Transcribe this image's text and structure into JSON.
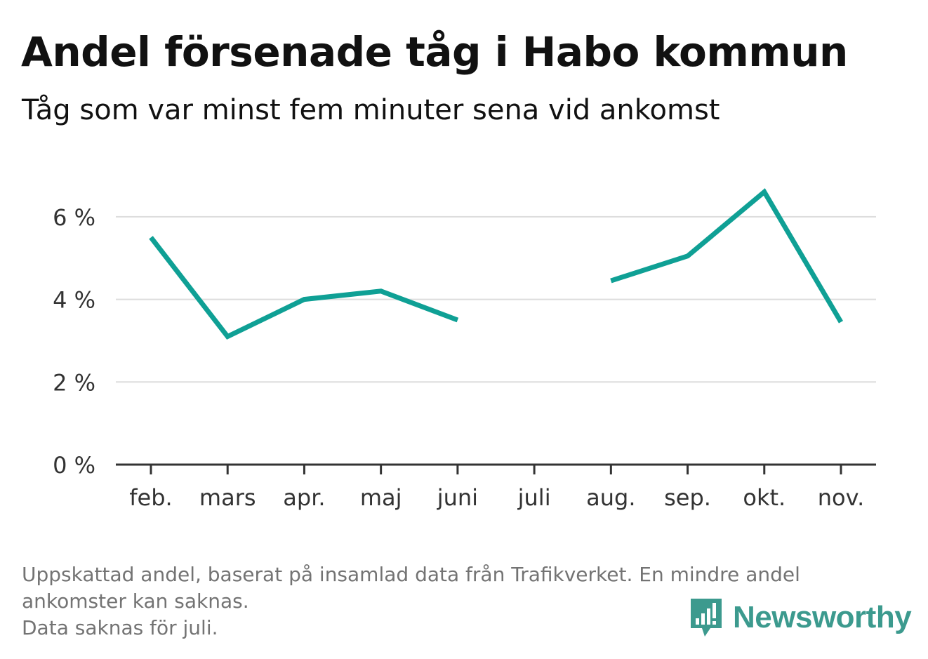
{
  "header": {
    "title": "Andel försenade tåg i Habo kommun",
    "subtitle": "Tåg som var minst fem minuter sena vid ankomst"
  },
  "chart_data": {
    "type": "line",
    "title": "Andel försenade tåg i Habo kommun",
    "subtitle": "Tåg som var minst fem minuter sena vid ankomst",
    "xlabel": "",
    "ylabel": "",
    "categories": [
      "feb.",
      "mars",
      "apr.",
      "maj",
      "juni",
      "juli",
      "aug.",
      "sep.",
      "okt.",
      "nov."
    ],
    "series": [
      {
        "values": [
          5.5,
          3.1,
          4.0,
          4.2,
          3.5,
          null,
          4.45,
          5.05,
          6.6,
          3.45
        ]
      }
    ],
    "ylim": [
      0,
      7
    ],
    "yticks": [
      0,
      2,
      4,
      6
    ],
    "ytick_labels": [
      "0 %",
      "2 %",
      "4 %",
      "6 %"
    ],
    "grid": true,
    "legend": "none",
    "colors": {
      "line": "#0fa095",
      "grid": "#dddddd",
      "axis": "#333333"
    }
  },
  "footnote": {
    "line1": "Uppskattad andel, baserat på insamlad data från Trafikverket. En mindre andel",
    "line2": "ankomster kan saknas.",
    "line3": "Data saknas för juli."
  },
  "brand": {
    "name": "Newsworthy",
    "icon": "newsworthy-logo-icon",
    "color": "#3c9a8e"
  }
}
